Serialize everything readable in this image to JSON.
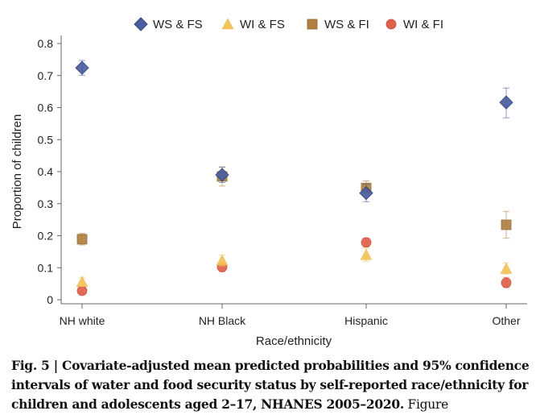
{
  "chart_data": {
    "type": "scatter",
    "title": "",
    "xlabel": "Race/ethnicity",
    "ylabel": "Proportion of children",
    "ylim": [
      0,
      0.8
    ],
    "yticks": [
      "0",
      "0.1",
      "0.2",
      "0.3",
      "0.4",
      "0.5",
      "0.6",
      "0.7",
      "0.8"
    ],
    "categories": [
      "NH white",
      "NH Black",
      "Hispanic",
      "Other"
    ],
    "legend_position": "top",
    "series": [
      {
        "name": "WS & FS",
        "marker": "diamond",
        "color": "#4a5fa0",
        "values": [
          0.724,
          0.39,
          0.333,
          0.616
        ],
        "ci_low": [
          0.701,
          0.366,
          0.306,
          0.568
        ],
        "ci_high": [
          0.747,
          0.414,
          0.36,
          0.661
        ]
      },
      {
        "name": "WI & FS",
        "marker": "triangle",
        "color": "#f2c45a",
        "values": [
          0.056,
          0.123,
          0.14,
          0.097
        ],
        "ci_low": [
          0.042,
          0.105,
          0.12,
          0.08
        ],
        "ci_high": [
          0.07,
          0.14,
          0.16,
          0.115
        ]
      },
      {
        "name": "WS & FI",
        "marker": "square",
        "color": "#b08040",
        "values": [
          0.189,
          0.385,
          0.349,
          0.234
        ],
        "ci_low": [
          0.171,
          0.355,
          0.327,
          0.192
        ],
        "ci_high": [
          0.207,
          0.415,
          0.371,
          0.276
        ]
      },
      {
        "name": "WI & FI",
        "marker": "circle",
        "color": "#e0604a",
        "values": [
          0.028,
          0.102,
          0.179,
          0.053
        ],
        "ci_low": [
          0.02,
          0.088,
          0.165,
          0.038
        ],
        "ci_high": [
          0.036,
          0.116,
          0.193,
          0.07
        ]
      }
    ]
  },
  "caption": {
    "bold": "Fig. 5 | Covariate-adjusted mean predicted probabilities and 95% confidence intervals of water and food security status by self-reported race/ethnicity for children and adolescents aged 2–17, NHANES 2005–2020.",
    "normal": " Figure"
  }
}
